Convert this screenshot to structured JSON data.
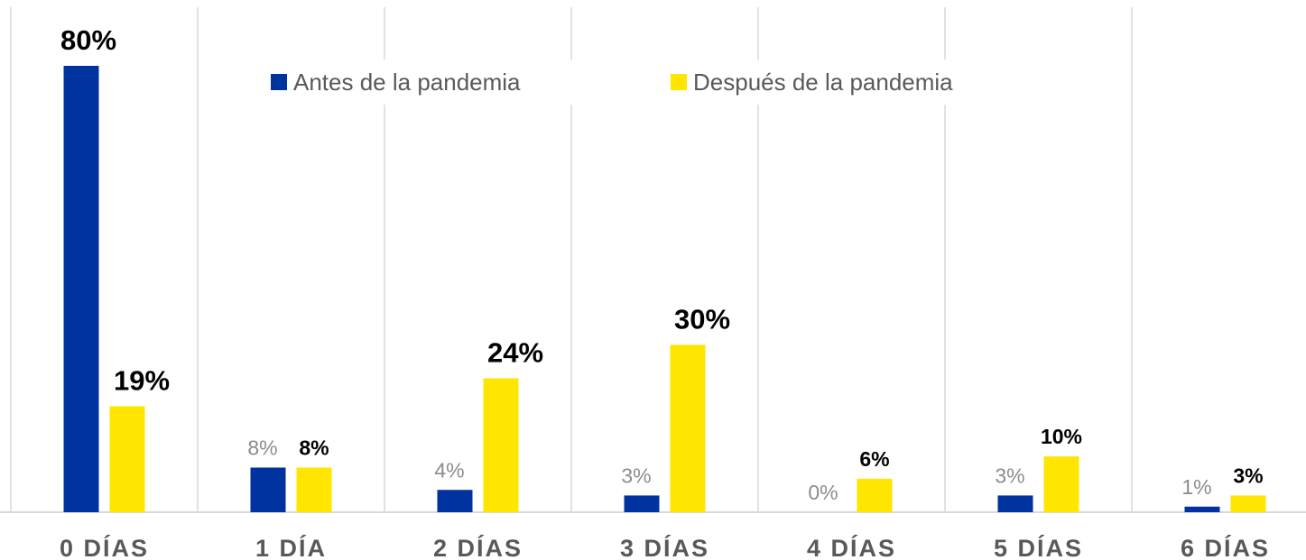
{
  "chart_data": {
    "type": "bar",
    "categories": [
      "0 DÍAS",
      "1 DÍA",
      "2 DÍAS",
      "3 DÍAS",
      "4 DÍAS",
      "5 DÍAS",
      "6 DÍAS"
    ],
    "series": [
      {
        "name": "Antes de la pandemia",
        "color": "#0033a0",
        "values": [
          80,
          8,
          4,
          3,
          0,
          3,
          1
        ],
        "value_labels": [
          "80%",
          "8%",
          "4%",
          "3%",
          "0%",
          "3%",
          "1%"
        ]
      },
      {
        "name": "Después de la pandemia",
        "color": "#ffe500",
        "values": [
          19,
          8,
          24,
          30,
          6,
          10,
          3
        ],
        "value_labels": [
          "19%",
          "8%",
          "24%",
          "30%",
          "6%",
          "10%",
          "3%"
        ]
      }
    ],
    "ylim": [
      0,
      80
    ],
    "grid": true,
    "legend": "top"
  }
}
